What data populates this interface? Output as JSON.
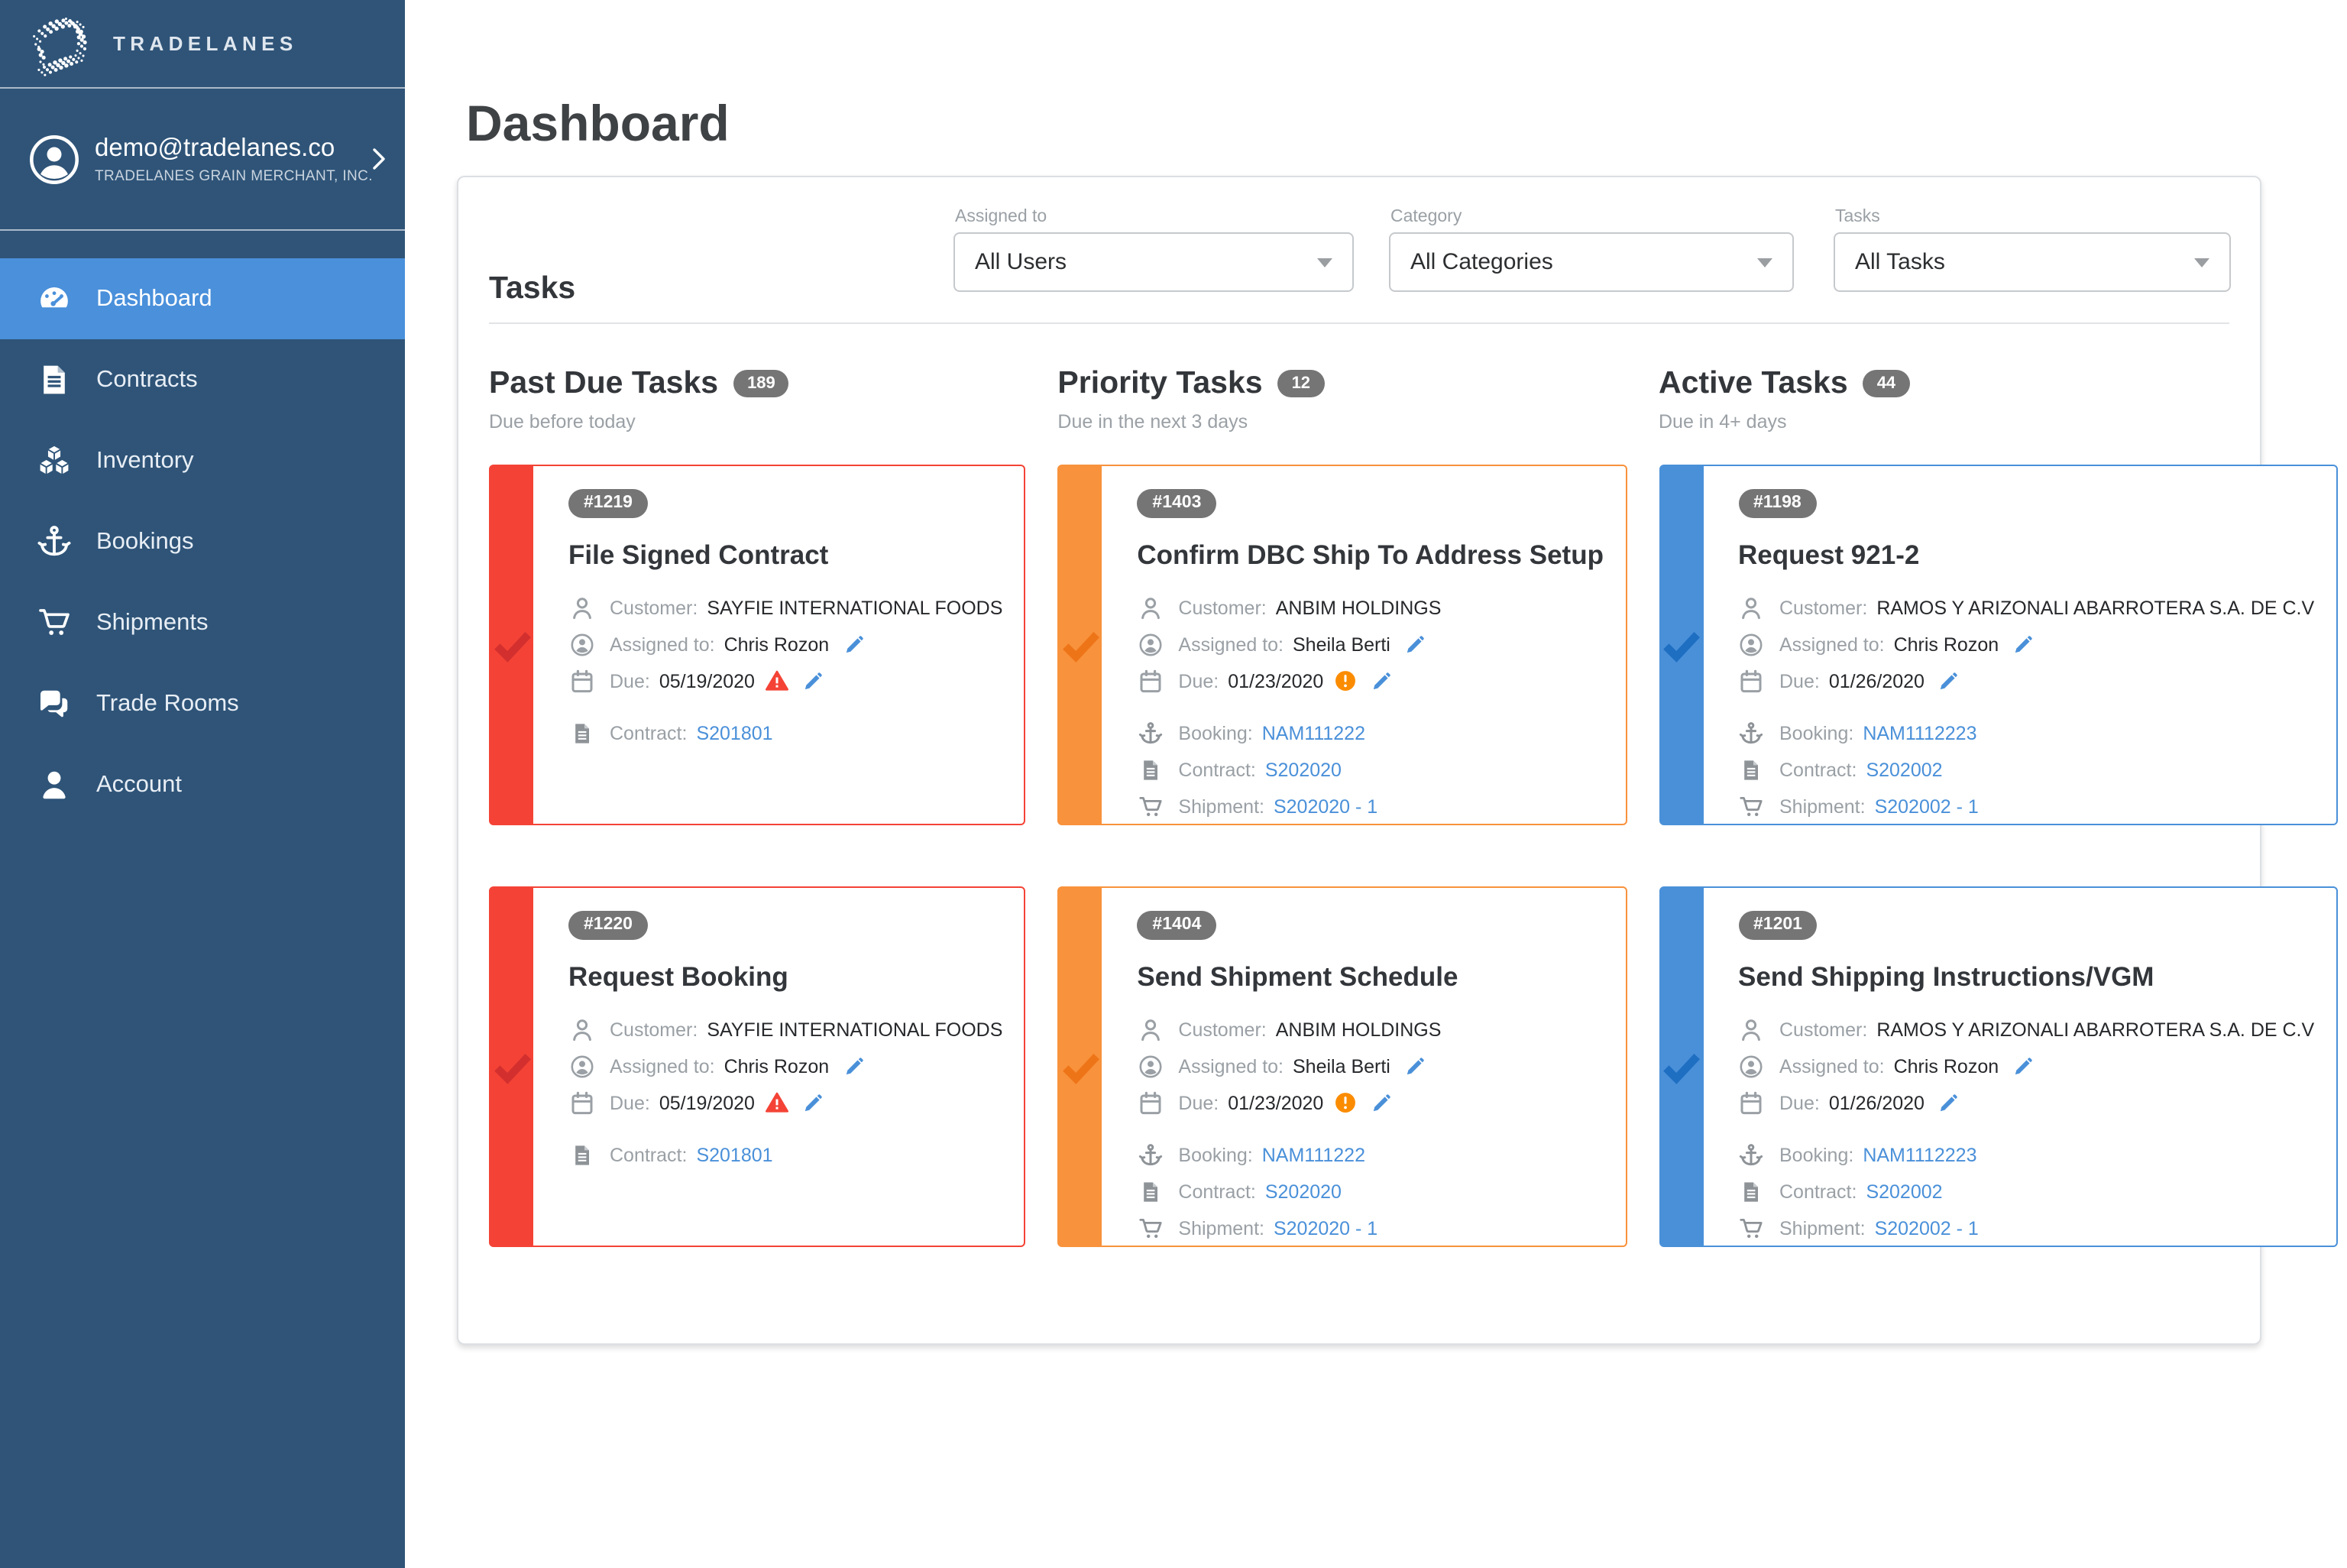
{
  "sidebar": {
    "logo_text": "TRADELANES",
    "user": {
      "email": "demo@tradelanes.co",
      "company": "TRADELANES GRAIN MERCHANT, INC."
    },
    "items": [
      {
        "label": "Dashboard",
        "icon": "dashboard",
        "active": true
      },
      {
        "label": "Contracts",
        "icon": "contracts",
        "active": false
      },
      {
        "label": "Inventory",
        "icon": "inventory",
        "active": false
      },
      {
        "label": "Bookings",
        "icon": "bookings",
        "active": false
      },
      {
        "label": "Shipments",
        "icon": "shipments",
        "active": false
      },
      {
        "label": "Trade Rooms",
        "icon": "trade-rooms",
        "active": false
      },
      {
        "label": "Account",
        "icon": "account",
        "active": false
      }
    ]
  },
  "page": {
    "title": "Dashboard"
  },
  "tasks_panel": {
    "heading": "Tasks",
    "filters": [
      {
        "label": "Assigned to",
        "value": "All Users"
      },
      {
        "label": "Category",
        "value": "All Categories"
      },
      {
        "label": "Tasks",
        "value": "All Tasks"
      }
    ],
    "field_labels": {
      "customer": "Customer:",
      "assigned_to": "Assigned to:",
      "due": "Due:",
      "booking": "Booking:",
      "contract": "Contract:",
      "shipment": "Shipment:"
    },
    "columns": [
      {
        "title": "Past Due Tasks",
        "count": "189",
        "subtitle": "Due before today",
        "accent": "#f44336",
        "accent_dark": "#d32f2f",
        "cards": [
          {
            "id": "#1219",
            "title": "File Signed Contract",
            "customer": "SAYFIE INTERNATIONAL FOODS",
            "assigned_to": "Chris Rozon",
            "due": "05/19/2020",
            "due_warning": "overdue",
            "links": [
              {
                "type": "contract",
                "value": "S201801"
              }
            ]
          },
          {
            "id": "#1220",
            "title": "Request Booking",
            "customer": "SAYFIE INTERNATIONAL FOODS",
            "assigned_to": "Chris Rozon",
            "due": "05/19/2020",
            "due_warning": "overdue",
            "links": [
              {
                "type": "contract",
                "value": "S201801"
              }
            ]
          }
        ]
      },
      {
        "title": "Priority Tasks",
        "count": "12",
        "subtitle": "Due in the next 3 days",
        "accent": "#f8923c",
        "accent_dark": "#ee7418",
        "cards": [
          {
            "id": "#1403",
            "title": "Confirm DBC Ship To Address Setup",
            "customer": "ANBIM HOLDINGS",
            "assigned_to": "Sheila Berti",
            "due": "01/23/2020",
            "due_warning": "due-soon",
            "links": [
              {
                "type": "booking",
                "value": "NAM111222"
              },
              {
                "type": "contract",
                "value": "S202020"
              },
              {
                "type": "shipment",
                "value": "S202020 - 1"
              }
            ]
          },
          {
            "id": "#1404",
            "title": "Send Shipment Schedule",
            "customer": "ANBIM HOLDINGS",
            "assigned_to": "Sheila Berti",
            "due": "01/23/2020",
            "due_warning": "due-soon",
            "links": [
              {
                "type": "booking",
                "value": "NAM111222"
              },
              {
                "type": "contract",
                "value": "S202020"
              },
              {
                "type": "shipment",
                "value": "S202020 - 1"
              }
            ]
          }
        ]
      },
      {
        "title": "Active Tasks",
        "count": "44",
        "subtitle": "Due in 4+ days",
        "accent": "#4a90d9",
        "accent_dark": "#1e6ec2",
        "cards": [
          {
            "id": "#1198",
            "title": "Request 921-2",
            "customer": "RAMOS Y ARIZONALI ABARROTERA S.A. DE C.V",
            "assigned_to": "Chris Rozon",
            "due": "01/26/2020",
            "due_warning": null,
            "links": [
              {
                "type": "booking",
                "value": "NAM1112223"
              },
              {
                "type": "contract",
                "value": "S202002"
              },
              {
                "type": "shipment",
                "value": "S202002 - 1"
              }
            ]
          },
          {
            "id": "#1201",
            "title": "Send Shipping Instructions/VGM",
            "customer": "RAMOS Y ARIZONALI ABARROTERA S.A. DE C.V",
            "assigned_to": "Chris Rozon",
            "due": "01/26/2020",
            "due_warning": null,
            "links": [
              {
                "type": "booking",
                "value": "NAM1112223"
              },
              {
                "type": "contract",
                "value": "S202002"
              },
              {
                "type": "shipment",
                "value": "S202002 - 1"
              }
            ]
          }
        ]
      }
    ]
  },
  "colors": {
    "sidebar_bg": "#2f5478",
    "active_item": "#4a90db",
    "link": "#4a90d9",
    "badge_bg": "#757575",
    "overdue": "#f44336",
    "due_soon": "#fb8c00"
  }
}
